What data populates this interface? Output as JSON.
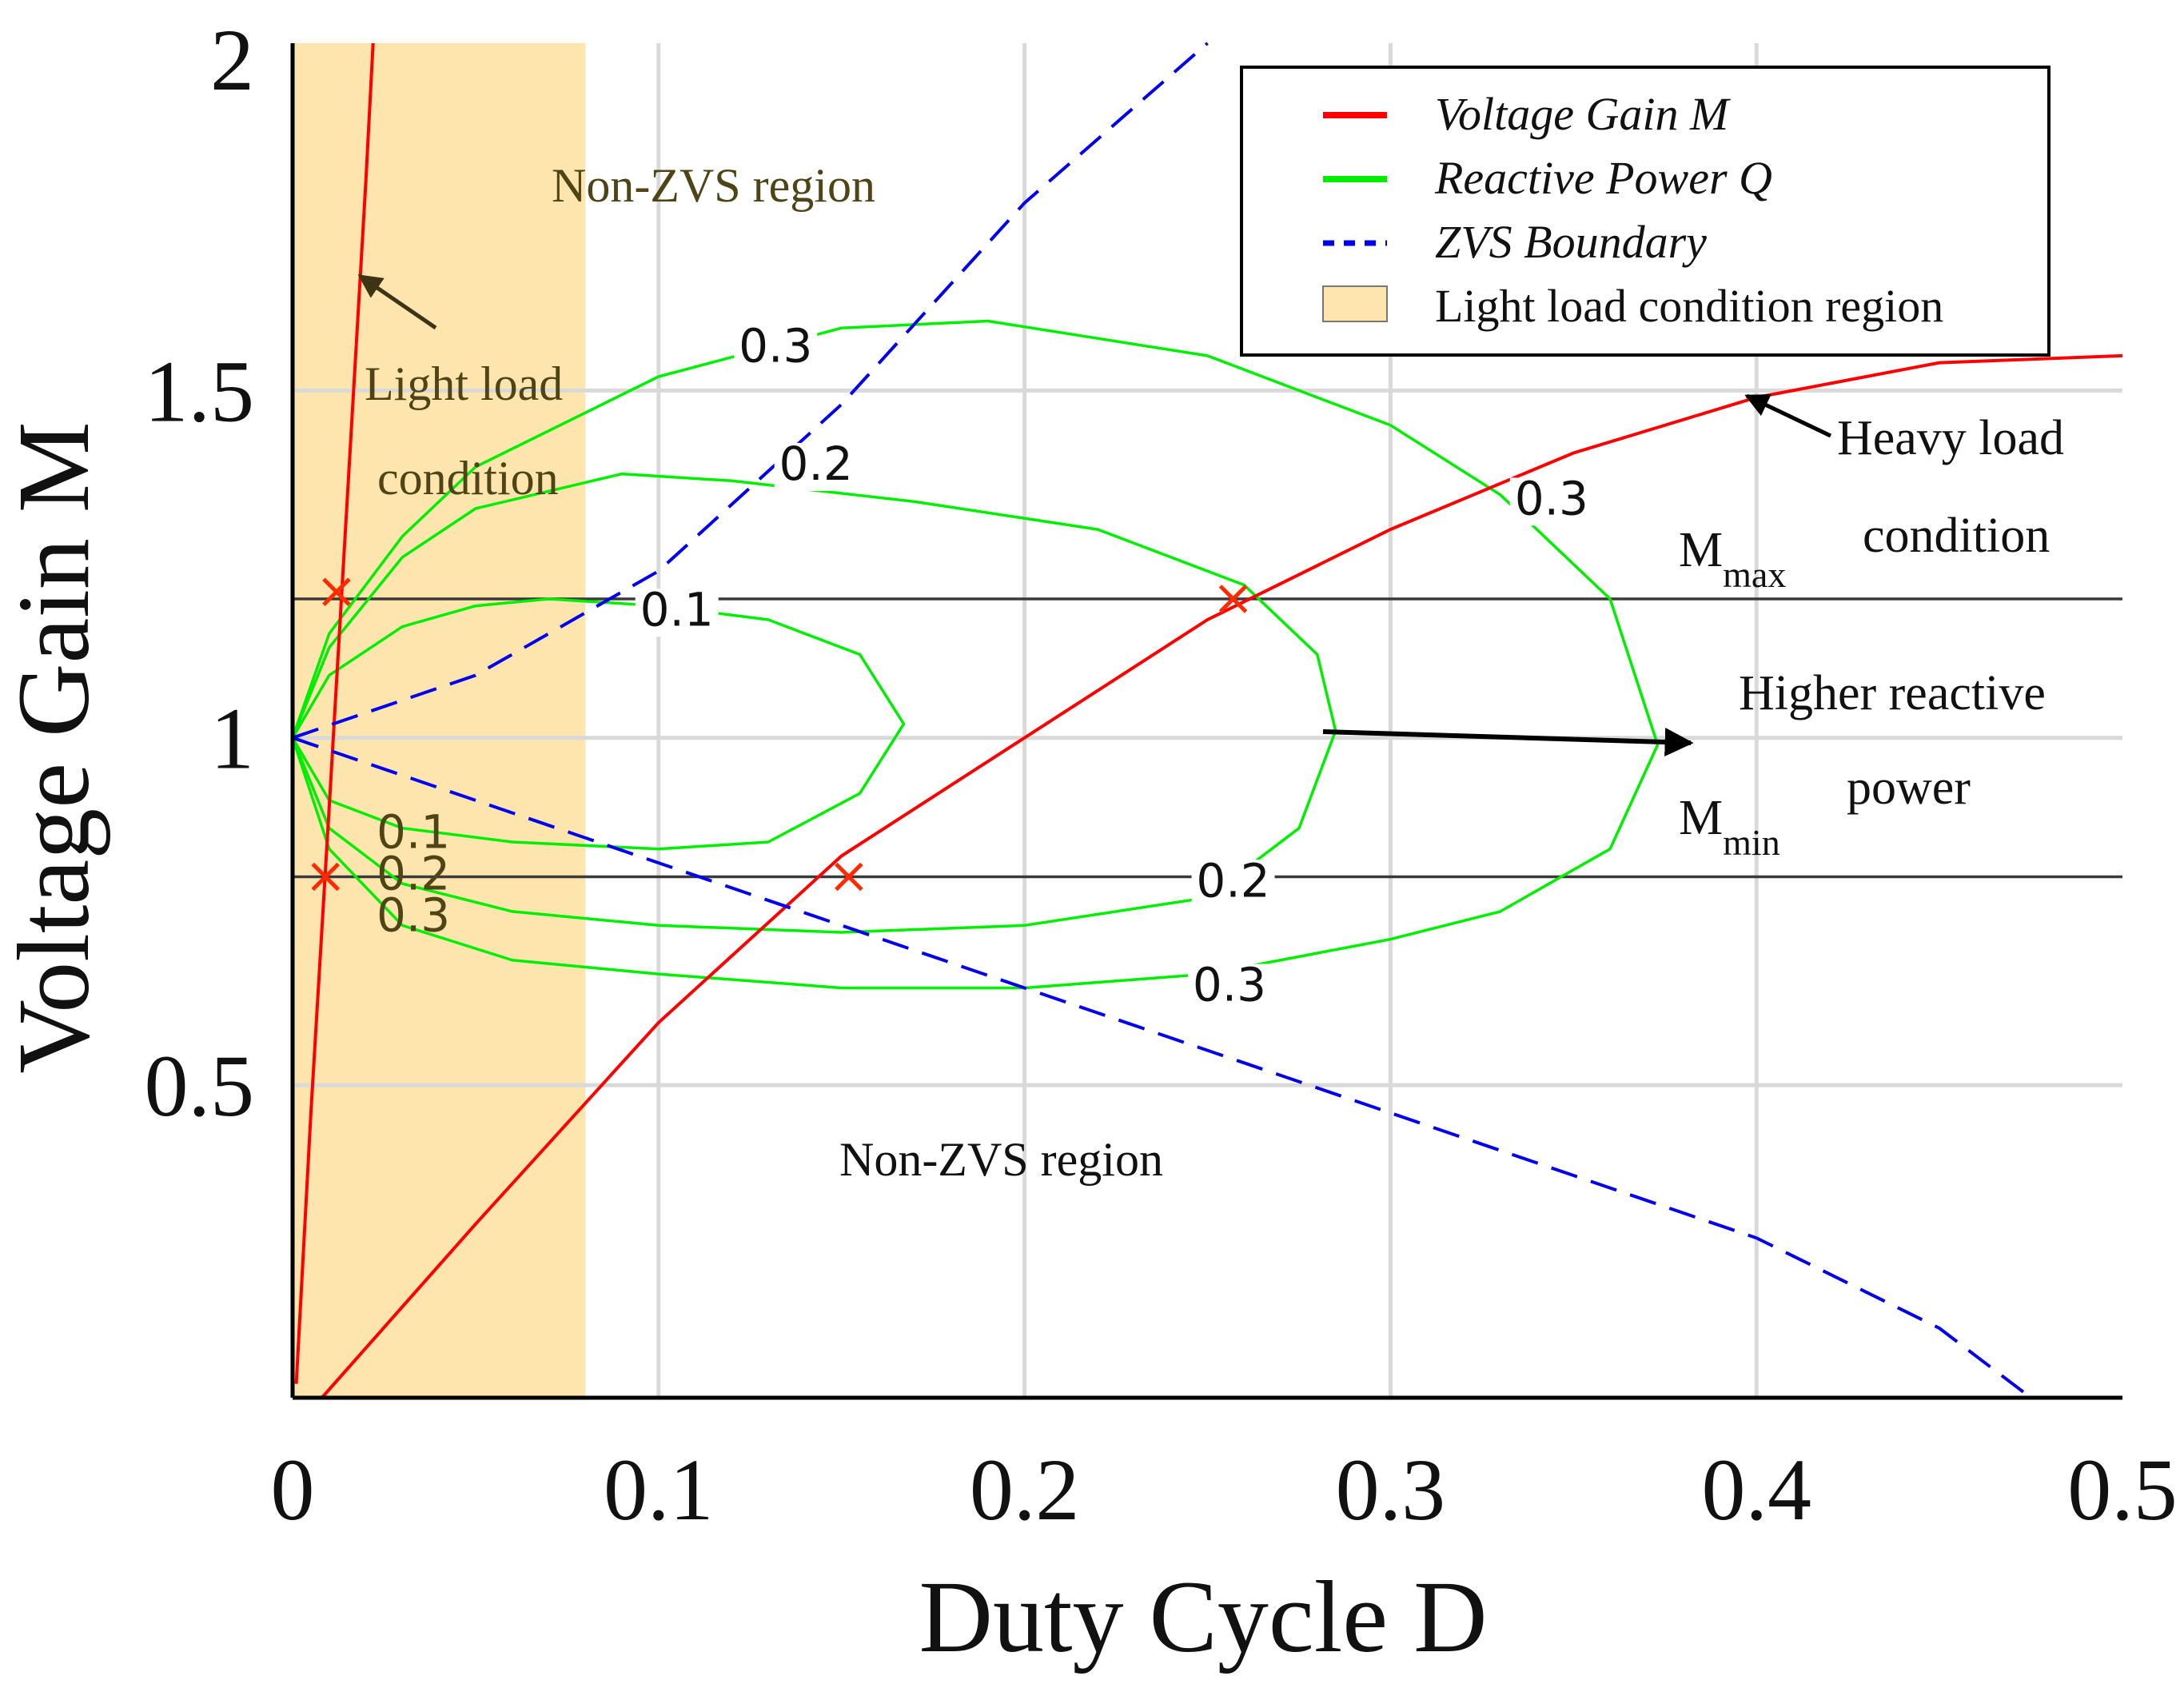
{
  "chart_data": {
    "type": "line",
    "xlabel": "Duty Cycle D",
    "ylabel": "Voltage Gain M",
    "xlim": [
      0,
      0.5
    ],
    "ylim": [
      0.05,
      2
    ],
    "x_ticks": [
      "0",
      "0.1",
      "0.2",
      "0.3",
      "0.4",
      "0.5"
    ],
    "y_ticks": [
      "0.5",
      "1",
      "1.5",
      "2"
    ],
    "grid": true,
    "legend": {
      "placement": "top-right",
      "entries": [
        {
          "label": "Voltage Gain M",
          "style": "solid",
          "color": "#ff0000"
        },
        {
          "label": "Reactive Power Q",
          "style": "solid",
          "color": "#00ee00"
        },
        {
          "label": "ZVS Boundary",
          "style": "dashed",
          "color": "#0000ee"
        },
        {
          "label": "Light load condition region",
          "style": "patch",
          "color": "#fde5ad"
        }
      ]
    },
    "shaded_region": {
      "x": [
        0,
        0.08
      ],
      "y": [
        0.05,
        2
      ],
      "color": "#fde5ad"
    },
    "series": [
      {
        "name": "Voltage Gain M",
        "color": "#ff0000",
        "style": "solid",
        "curves": [
          {
            "x": [
              0.001,
              0.005,
              0.01,
              0.015,
              0.02,
              0.022
            ],
            "y": [
              0.07,
              0.46,
              0.9,
              1.35,
              1.8,
              2.0
            ]
          },
          {
            "x": [
              0.008,
              0.05,
              0.1,
              0.15,
              0.2,
              0.25,
              0.3,
              0.35,
              0.4,
              0.45,
              0.5
            ],
            "y": [
              0.05,
              0.3,
              0.59,
              0.83,
              1.0,
              1.17,
              1.3,
              1.41,
              1.49,
              1.54,
              1.55
            ]
          }
        ]
      },
      {
        "name": "ZVS Boundary",
        "color": "#0000ee",
        "style": "dashed",
        "curves": [
          {
            "x": [
              0,
              0.05,
              0.1,
              0.15,
              0.2,
              0.25,
              0.3,
              0.35,
              0.4,
              0.45,
              0.475
            ],
            "y": [
              1.0,
              0.91,
              0.82,
              0.73,
              0.64,
              0.55,
              0.46,
              0.37,
              0.28,
              0.15,
              0.05
            ]
          },
          {
            "x": [
              0,
              0.05,
              0.1,
              0.15,
              0.2,
              0.25
            ],
            "y": [
              1.0,
              1.09,
              1.24,
              1.48,
              1.77,
              2.0
            ]
          }
        ]
      }
    ],
    "reactive_power_contours": [
      {
        "level": 0.1,
        "x": [
          0,
          0.01,
          0.03,
          0.06,
          0.1,
          0.13,
          0.155,
          0.167,
          0.155,
          0.13,
          0.1,
          0.07,
          0.05,
          0.03,
          0.01,
          0
        ],
        "y": [
          1.0,
          0.91,
          0.87,
          0.85,
          0.84,
          0.85,
          0.92,
          1.02,
          1.12,
          1.17,
          1.19,
          1.2,
          1.19,
          1.16,
          1.09,
          1.0
        ]
      },
      {
        "level": 0.2,
        "x": [
          0,
          0.01,
          0.03,
          0.06,
          0.1,
          0.15,
          0.2,
          0.25,
          0.275,
          0.285,
          0.28,
          0.26,
          0.22,
          0.17,
          0.12,
          0.09,
          0.05,
          0.03,
          0.01,
          0
        ],
        "y": [
          1.0,
          0.87,
          0.79,
          0.75,
          0.73,
          0.72,
          0.73,
          0.77,
          0.87,
          1.01,
          1.12,
          1.22,
          1.3,
          1.34,
          1.37,
          1.38,
          1.33,
          1.26,
          1.13,
          1.0
        ]
      },
      {
        "level": 0.3,
        "x": [
          0,
          0.01,
          0.03,
          0.06,
          0.1,
          0.15,
          0.2,
          0.25,
          0.3,
          0.33,
          0.36,
          0.373,
          0.36,
          0.33,
          0.3,
          0.25,
          0.19,
          0.15,
          0.1,
          0.05,
          0.03,
          0.01,
          0
        ],
        "y": [
          1.0,
          0.84,
          0.73,
          0.68,
          0.66,
          0.64,
          0.64,
          0.66,
          0.71,
          0.75,
          0.84,
          0.99,
          1.2,
          1.35,
          1.45,
          1.55,
          1.6,
          1.59,
          1.52,
          1.39,
          1.29,
          1.15,
          1.0
        ]
      }
    ],
    "contour_labels": [
      {
        "text": "0.3",
        "x": 0.132,
        "y": 1.56
      },
      {
        "text": "0.2",
        "x": 0.143,
        "y": 1.39
      },
      {
        "text": "0.1",
        "x": 0.105,
        "y": 1.18
      },
      {
        "text": "0.1",
        "x": 0.033,
        "y": 0.86
      },
      {
        "text": "0.2",
        "x": 0.033,
        "y": 0.8
      },
      {
        "text": "0.3",
        "x": 0.033,
        "y": 0.74
      },
      {
        "text": "0.2",
        "x": 0.257,
        "y": 0.79
      },
      {
        "text": "0.3",
        "x": 0.256,
        "y": 0.64
      },
      {
        "text": "0.3",
        "x": 0.344,
        "y": 1.34
      }
    ],
    "horizontal_lines": [
      {
        "label": "M",
        "sub": "max",
        "y": 1.2
      },
      {
        "label": "M",
        "sub": "min",
        "y": 0.8
      }
    ],
    "markers": [
      {
        "x": 0.012,
        "y": 1.21
      },
      {
        "x": 0.009,
        "y": 0.8
      },
      {
        "x": 0.257,
        "y": 1.2
      },
      {
        "x": 0.152,
        "y": 0.8
      }
    ],
    "annotations": {
      "non_zvs_top": "Non-ZVS region",
      "non_zvs_bottom": "Non-ZVS region",
      "light_load_1": "Light load",
      "light_load_2": "condition",
      "heavy_load_1": "Heavy load",
      "heavy_load_2": "condition",
      "higher_reactive_1": "Higher reactive",
      "higher_reactive_2": "power"
    }
  }
}
